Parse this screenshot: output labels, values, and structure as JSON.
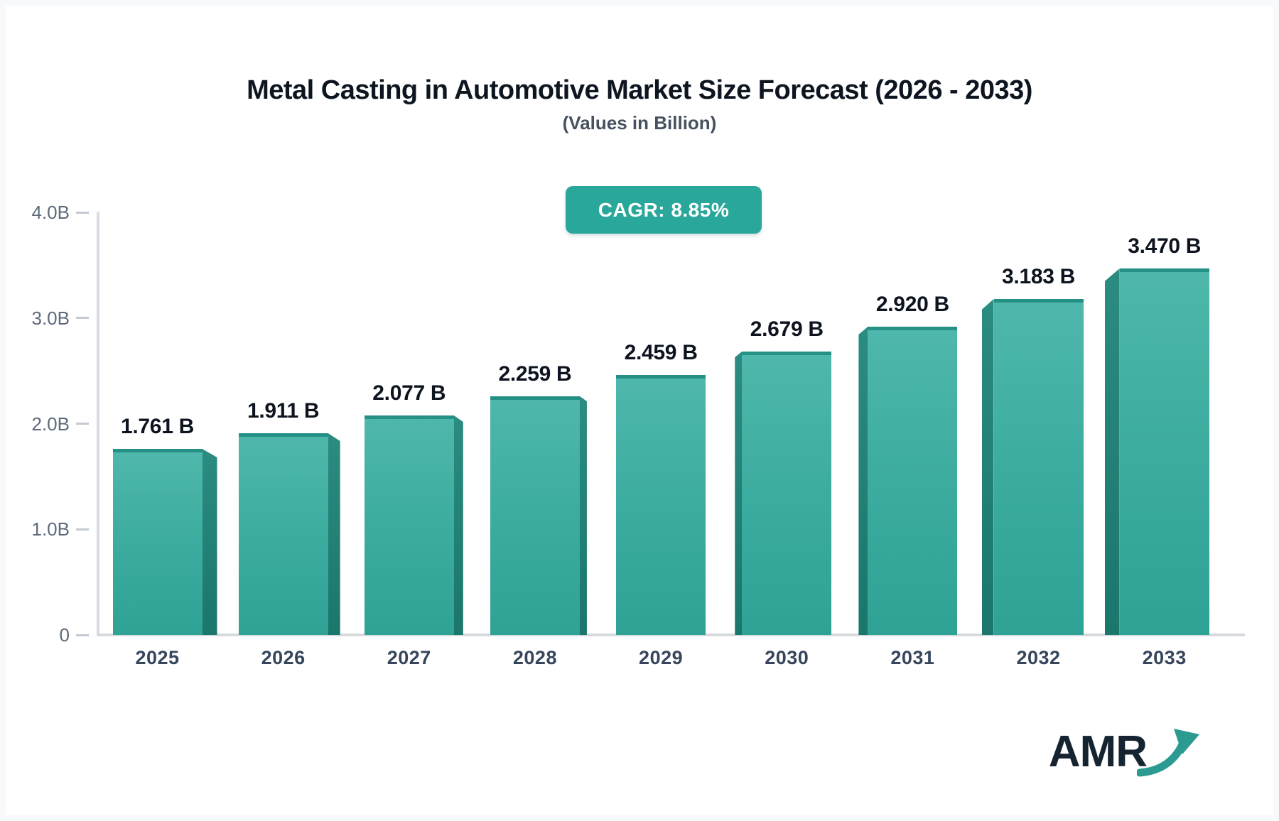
{
  "page": {
    "background": "#f7f9fa",
    "card_background": "#ffffff"
  },
  "header": {
    "title": "Metal Casting in Automotive Market Size Forecast (2026 - 2033)",
    "subtitle": "(Values in Billion)"
  },
  "badge": {
    "label": "CAGR: 8.85%",
    "background": "#2aa79b",
    "text_color": "#ffffff"
  },
  "chart_data": {
    "type": "bar",
    "title": "Metal Casting in Automotive Market Size Forecast (2026 - 2033)",
    "subtitle": "(Values in Billion)",
    "annotation": "CAGR: 8.85%",
    "categories": [
      "2025",
      "2026",
      "2027",
      "2028",
      "2029",
      "2030",
      "2031",
      "2032",
      "2033"
    ],
    "values": [
      1.761,
      1.911,
      2.077,
      2.259,
      2.459,
      2.679,
      2.92,
      3.183,
      3.47
    ],
    "value_labels": [
      "1.761 B",
      "1.911 B",
      "2.077 B",
      "2.259 B",
      "2.459 B",
      "2.679 B",
      "2.920 B",
      "3.183 B",
      "3.470 B"
    ],
    "unit": "Billion",
    "xlabel": "",
    "ylabel": "",
    "ylim": [
      0,
      4
    ],
    "yticks": [
      {
        "value": 0,
        "label": "0"
      },
      {
        "value": 1,
        "label": "1.0B"
      },
      {
        "value": 2,
        "label": "2.0B"
      },
      {
        "value": 3,
        "label": "3.0B"
      },
      {
        "value": 4,
        "label": "4.0B"
      }
    ],
    "grid": false,
    "legend": false,
    "bar_color_top": "#4fb7ac",
    "bar_color_bottom": "#2fa296",
    "bar_side_color": "#1b766c",
    "style": "3d-perspective"
  },
  "logo": {
    "text": "AMR",
    "text_color": "#152430",
    "arrow_color": "#2b9a91"
  }
}
